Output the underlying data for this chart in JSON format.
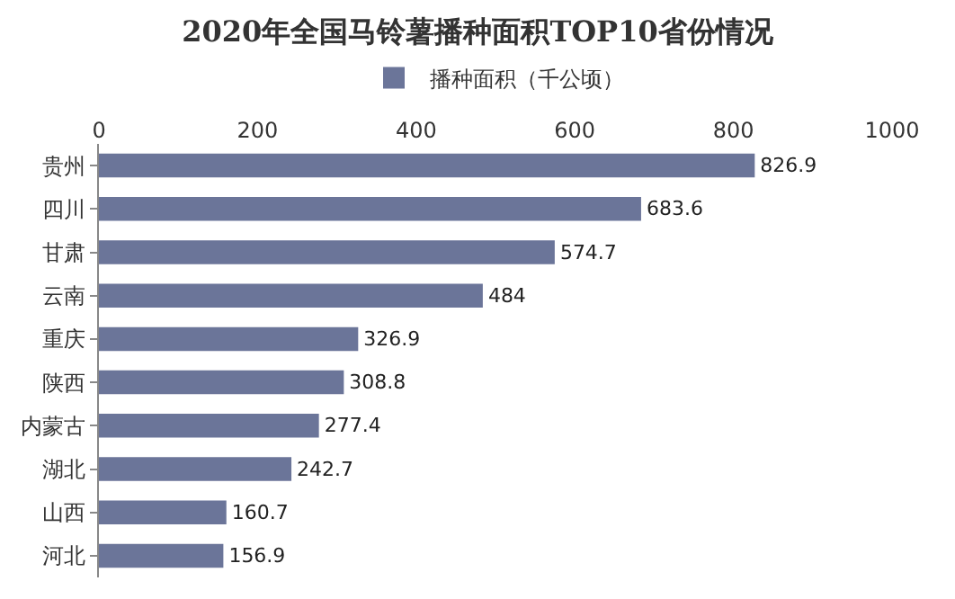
{
  "chart_data": {
    "type": "bar",
    "orientation": "horizontal",
    "title": "2020年全国马铃薯播种面积TOP10省份情况",
    "categories": [
      "贵州",
      "四川",
      "甘肃",
      "云南",
      "重庆",
      "陕西",
      "内蒙古",
      "湖北",
      "山西",
      "河北"
    ],
    "series": [
      {
        "name": "播种面积（千公顷）",
        "color": "#6b7599",
        "values": [
          826.9,
          683.6,
          574.7,
          484,
          326.9,
          308.8,
          277.4,
          242.7,
          160.7,
          156.9
        ]
      }
    ],
    "xlim": [
      0,
      1000
    ],
    "xticks": [
      0,
      200,
      400,
      600,
      800,
      1000
    ],
    "data_labels": true,
    "legend": "top",
    "grid": false
  }
}
